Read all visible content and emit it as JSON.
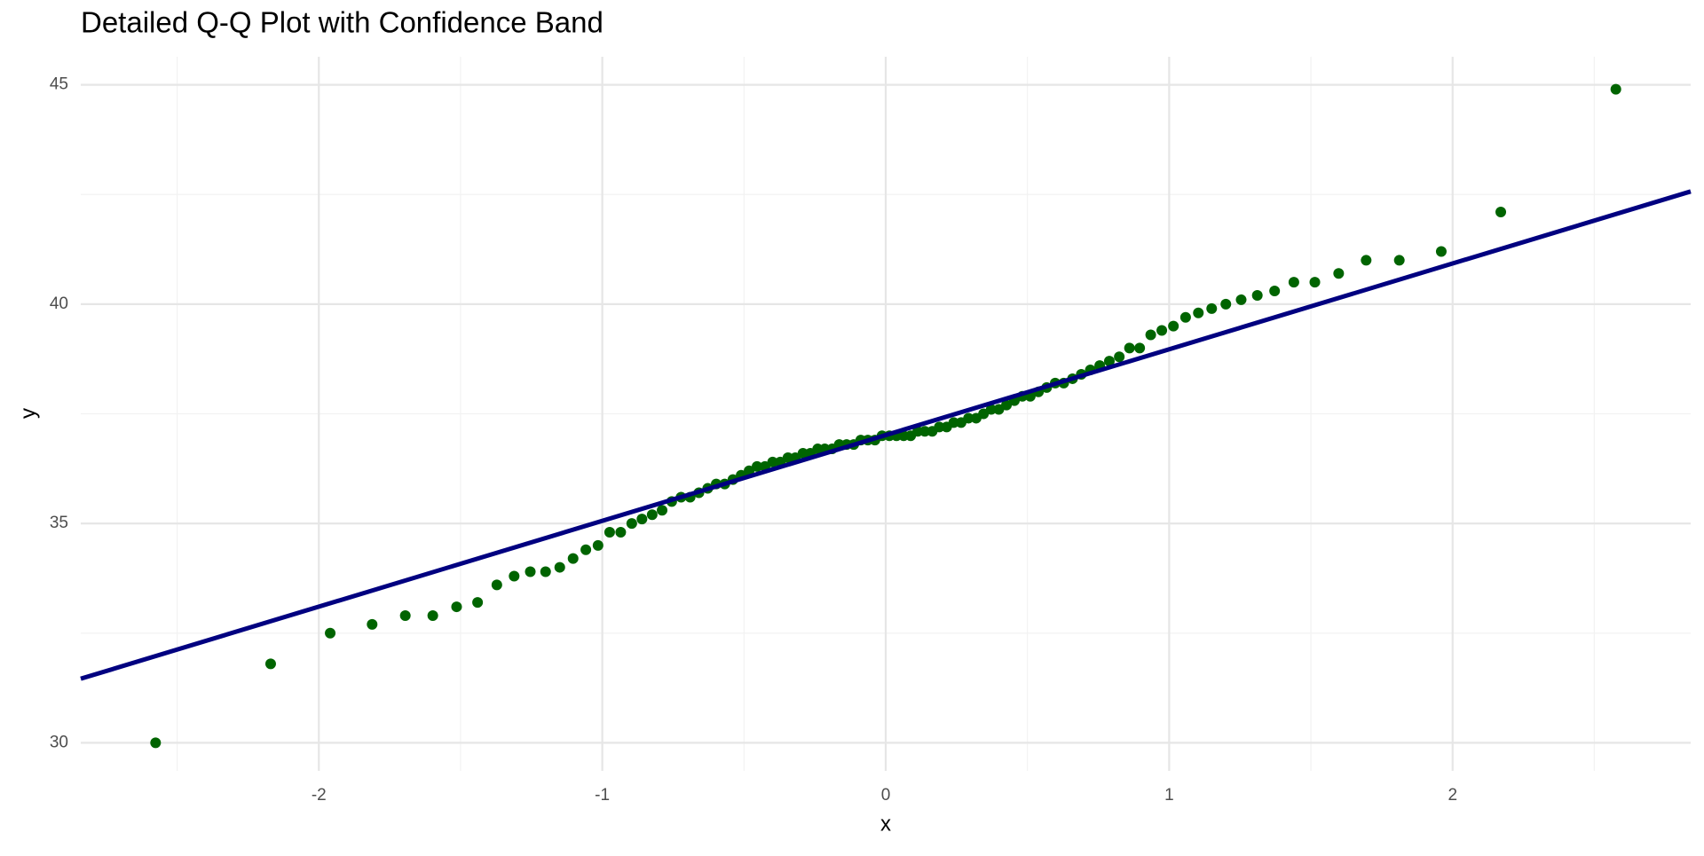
{
  "chart_data": {
    "type": "scatter",
    "title": "Detailed Q-Q Plot with Confidence Band",
    "x_label": "x",
    "y_label": "y",
    "color": "#006400",
    "x": [
      -2.576,
      -2.17,
      -1.96,
      -1.812,
      -1.695,
      -1.598,
      -1.514,
      -1.44,
      -1.372,
      -1.311,
      -1.254,
      -1.2,
      -1.15,
      -1.103,
      -1.058,
      -1.015,
      -0.974,
      -0.935,
      -0.896,
      -0.86,
      -0.824,
      -0.789,
      -0.755,
      -0.722,
      -0.69,
      -0.659,
      -0.628,
      -0.598,
      -0.568,
      -0.539,
      -0.51,
      -0.482,
      -0.454,
      -0.426,
      -0.399,
      -0.372,
      -0.345,
      -0.319,
      -0.292,
      -0.266,
      -0.24,
      -0.215,
      -0.189,
      -0.164,
      -0.138,
      -0.113,
      -0.088,
      -0.063,
      -0.038,
      -0.013,
      0.013,
      0.038,
      0.063,
      0.088,
      0.113,
      0.138,
      0.164,
      0.189,
      0.215,
      0.24,
      0.266,
      0.292,
      0.319,
      0.345,
      0.372,
      0.399,
      0.426,
      0.454,
      0.482,
      0.51,
      0.539,
      0.568,
      0.598,
      0.628,
      0.659,
      0.69,
      0.722,
      0.755,
      0.789,
      0.824,
      0.86,
      0.896,
      0.935,
      0.974,
      1.015,
      1.058,
      1.103,
      1.15,
      1.2,
      1.254,
      1.311,
      1.372,
      1.44,
      1.514,
      1.598,
      1.695,
      1.812,
      1.96,
      2.17,
      2.576
    ],
    "y": [
      30.0,
      31.8,
      32.5,
      32.7,
      32.9,
      32.9,
      33.1,
      33.2,
      33.6,
      33.8,
      33.9,
      33.9,
      34.0,
      34.2,
      34.4,
      34.5,
      34.8,
      34.8,
      35.0,
      35.1,
      35.2,
      35.3,
      35.5,
      35.6,
      35.6,
      35.7,
      35.8,
      35.9,
      35.9,
      36.0,
      36.1,
      36.2,
      36.3,
      36.3,
      36.4,
      36.4,
      36.5,
      36.5,
      36.6,
      36.6,
      36.7,
      36.7,
      36.7,
      36.8,
      36.8,
      36.8,
      36.9,
      36.9,
      36.9,
      37.0,
      37.0,
      37.0,
      37.0,
      37.0,
      37.1,
      37.1,
      37.1,
      37.2,
      37.2,
      37.3,
      37.3,
      37.4,
      37.4,
      37.5,
      37.6,
      37.6,
      37.7,
      37.8,
      37.9,
      37.9,
      38.0,
      38.1,
      38.2,
      38.2,
      38.3,
      38.4,
      38.5,
      38.6,
      38.7,
      38.8,
      39.0,
      39.0,
      39.3,
      39.4,
      39.5,
      39.7,
      39.8,
      39.9,
      40.0,
      40.1,
      40.2,
      40.3,
      40.5,
      40.5,
      40.7,
      41.0,
      41.0,
      41.2,
      42.1,
      44.9
    ],
    "reference_line": {
      "color": "#000080",
      "x": [
        -2.84,
        2.84
      ],
      "y": [
        31.46,
        42.57
      ]
    },
    "xlim": [
      -2.84,
      2.84
    ],
    "ylim": [
      29.36,
      45.64
    ],
    "xticks": [
      -2,
      -1,
      0,
      1,
      2
    ],
    "yticks": [
      30,
      35,
      40,
      45
    ],
    "x_minor_ticks": [
      -2.5,
      -1.5,
      -0.5,
      0.5,
      1.5,
      2.5
    ],
    "y_minor_ticks": [
      32.5,
      37.5,
      42.5
    ],
    "grid": true
  }
}
